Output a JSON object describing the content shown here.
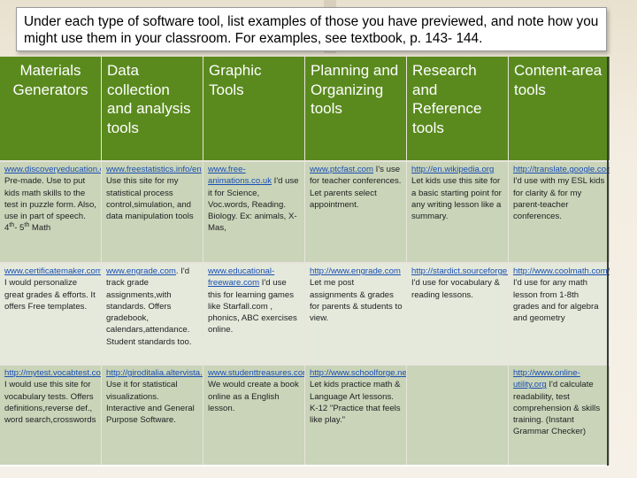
{
  "instruction": "Under each type of software tool, list examples of those you have previewed, and note how you might use them in your classroom.   For examples, see textbook, p. 143- 144.",
  "table": {
    "headers": [
      "Materials Generators",
      "Data collection and analysis tools",
      "Graphic Tools",
      "Planning and Organizing tools",
      "Research and Reference tools",
      "Content-area tools"
    ],
    "rows": [
      [
        {
          "link": "www.discoveryeducation.com",
          "text": ". Pre-made. Use to put kids math skills to the test in puzzle form. Also, use in part of speech. 4th- 5th Math"
        },
        {
          "link": "www.freestatistics.info/en",
          "text": " Use this site for my statistical process control,simulation, and data manipulation tools"
        },
        {
          "link": "www.free-animations.co.uk",
          "text": " I'd use it for Science, Voc.words, Reading. Biology. Ex: animals, X-Mas,"
        },
        {
          "link": "www.ptcfast.com",
          "text": " I's use for teacher conferences. Let parents select appointment."
        },
        {
          "link": "http://en.wikipedia.org",
          "text": " Let kids use this site for a basic starting point for any writing lesson like a summary."
        },
        {
          "link": "http://translate.google.com",
          "text": " I'd use with my ESL kids for clarity & for my parent-teacher conferences."
        }
      ],
      [
        {
          "link": "www.certificatemaker.com",
          "text": ". I would personalize great grades & efforts. It offers Free templates."
        },
        {
          "link": "www.engrade.com",
          "text": ". I'd track grade assignments,with standards. Offers gradebook, calendars,attendance. Student standards too."
        },
        {
          "link": "www.educational-freeware.com",
          "text": " I'd use this for learning games like Starfall.com , phonics, ABC exercises online."
        },
        {
          "link": "http://www.engrade.com",
          "text": " Let me post assignments & grades for parents & students to view."
        },
        {
          "link": "http://stardict.sourceforge.net/dictionaries.php",
          "text": " I'd use for vocabulary & reading lessons."
        },
        {
          "link": "http://www.coolmath.com/graphit",
          "text": " I'd use for any math lesson from 1-8th grades and for algebra and geometry"
        }
      ],
      [
        {
          "link": "http://mytest.vocabtest.com",
          "text": " I would use this site for vocabulary tests. Offers definitions,reverse def., word search,crosswords"
        },
        {
          "link": "http://giroditalia.altervista.org",
          "text": " Use it for statistical visualizations. Interactive and General Purpose Software."
        },
        {
          "link": "www.studenttreasures.com",
          "text": " We would create a book online as a English lesson."
        },
        {
          "link": "http://www.schoolforge.net",
          "text": " Let kids practice math & Language Art lessons. K-12 \"Practice that feels like play.\""
        },
        {
          "link": "",
          "text": ""
        },
        {
          "link": "http://www.online-utility.org",
          "text": " I'd calculate readability, test comprehension & skills training. (Instant Grammar Checker)"
        }
      ]
    ]
  }
}
